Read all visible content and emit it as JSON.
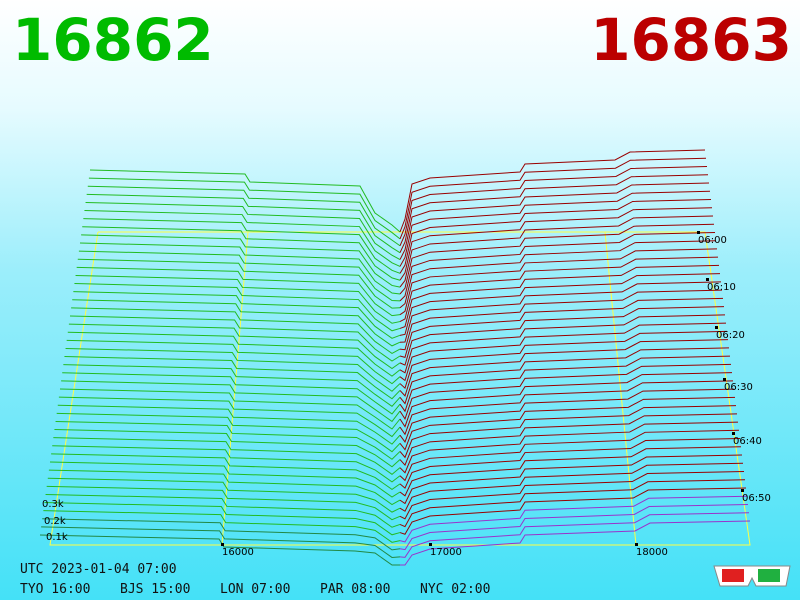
{
  "header": {
    "bid": "16862",
    "ask": "16863"
  },
  "price_axis": {
    "ticks": [
      "16000",
      "17000",
      "18000"
    ]
  },
  "depth_axis": {
    "ticks": [
      "0.3k",
      "0.2k",
      "0.1k"
    ]
  },
  "time_axis": {
    "ticks": [
      "06:00",
      "06:10",
      "06:20",
      "06:30",
      "06:40",
      "06:50"
    ]
  },
  "footer": {
    "utc": "UTC 2023-01-04 07:00",
    "clocks": [
      "TYO 16:00",
      "BJS 15:00",
      "LON 07:00",
      "PAR 08:00",
      "NYC 02:00"
    ]
  }
}
